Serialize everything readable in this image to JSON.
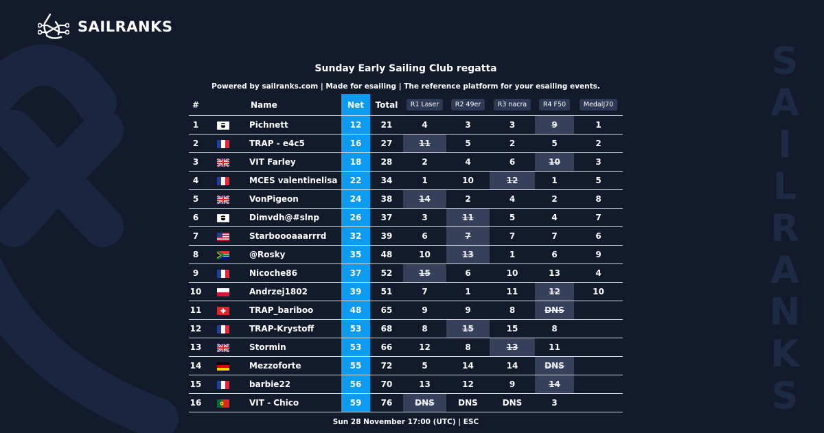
{
  "brand": {
    "name": "SAILRANKS",
    "side_letters": [
      "S",
      "A",
      "I",
      "L",
      "R",
      "A",
      "N",
      "K",
      "S"
    ]
  },
  "event": {
    "title": "Sunday Early Sailing Club regatta",
    "subtitle": "Powered by sailranks.com | Made for esailing | The reference platform for your esailing events.",
    "footer": "Sun 28 November 17:00 (UTC) | ESC"
  },
  "table": {
    "headers": {
      "rank": "#",
      "name": "Name",
      "net": "Net",
      "total": "Total"
    },
    "races": [
      "R1 Laser",
      "R2 49er",
      "R3 nacra",
      "R4 F50",
      "MedalJ70"
    ],
    "rows": [
      {
        "rank": "1",
        "flag": "corsica",
        "name": "Pichnett",
        "net": "12",
        "total": "21",
        "scores": [
          "4",
          "3",
          "3",
          "9",
          "1"
        ],
        "drops": [
          3
        ]
      },
      {
        "rank": "2",
        "flag": "fr",
        "name": "TRAP - e4c5",
        "net": "16",
        "total": "27",
        "scores": [
          "11",
          "5",
          "2",
          "5",
          "2"
        ],
        "drops": [
          0
        ]
      },
      {
        "rank": "3",
        "flag": "gb",
        "name": "VIT Farley",
        "net": "18",
        "total": "28",
        "scores": [
          "2",
          "4",
          "6",
          "10",
          "3"
        ],
        "drops": [
          3
        ]
      },
      {
        "rank": "4",
        "flag": "fr",
        "name": "MCES valentinelisa",
        "net": "22",
        "total": "34",
        "scores": [
          "1",
          "10",
          "12",
          "1",
          "5"
        ],
        "drops": [
          2
        ]
      },
      {
        "rank": "5",
        "flag": "gb",
        "name": "VonPigeon",
        "net": "24",
        "total": "38",
        "scores": [
          "14",
          "2",
          "4",
          "2",
          "8"
        ],
        "drops": [
          0
        ]
      },
      {
        "rank": "6",
        "flag": "corsica",
        "name": "Dimvdh@#slnp",
        "net": "26",
        "total": "37",
        "scores": [
          "3",
          "11",
          "5",
          "4",
          "7"
        ],
        "drops": [
          1
        ]
      },
      {
        "rank": "7",
        "flag": "us",
        "name": "Starboooaaarrrd",
        "net": "32",
        "total": "39",
        "scores": [
          "6",
          "7",
          "7",
          "7",
          "6"
        ],
        "drops": [
          1
        ]
      },
      {
        "rank": "8",
        "flag": "za",
        "name": "@Rosky",
        "net": "35",
        "total": "48",
        "scores": [
          "10",
          "13",
          "1",
          "6",
          "9"
        ],
        "drops": [
          1
        ]
      },
      {
        "rank": "9",
        "flag": "fr",
        "name": "Nicoche86",
        "net": "37",
        "total": "52",
        "scores": [
          "15",
          "6",
          "10",
          "13",
          "4"
        ],
        "drops": [
          0
        ]
      },
      {
        "rank": "10",
        "flag": "pl",
        "name": "Andrzej1802",
        "net": "39",
        "total": "51",
        "scores": [
          "7",
          "1",
          "11",
          "12",
          "10"
        ],
        "drops": [
          3
        ]
      },
      {
        "rank": "11",
        "flag": "ch",
        "name": "TRAP_bariboo",
        "net": "48",
        "total": "65",
        "scores": [
          "9",
          "9",
          "8",
          "DNS",
          ""
        ],
        "drops": [
          3
        ]
      },
      {
        "rank": "12",
        "flag": "fr",
        "name": "TRAP-Krystoff",
        "net": "53",
        "total": "68",
        "scores": [
          "8",
          "15",
          "15",
          "8",
          ""
        ],
        "drops": [
          1
        ]
      },
      {
        "rank": "13",
        "flag": "gb",
        "name": "Stormin",
        "net": "53",
        "total": "66",
        "scores": [
          "12",
          "8",
          "13",
          "11",
          ""
        ],
        "drops": [
          2
        ]
      },
      {
        "rank": "14",
        "flag": "de",
        "name": "Mezzoforte",
        "net": "55",
        "total": "72",
        "scores": [
          "5",
          "14",
          "14",
          "DNS",
          ""
        ],
        "drops": [
          3
        ]
      },
      {
        "rank": "15",
        "flag": "fr",
        "name": "barbie22",
        "net": "56",
        "total": "70",
        "scores": [
          "13",
          "12",
          "9",
          "14",
          ""
        ],
        "drops": [
          3
        ]
      },
      {
        "rank": "16",
        "flag": "pt",
        "name": "VIT - Chico",
        "net": "59",
        "total": "76",
        "scores": [
          "DNS",
          "DNS",
          "DNS",
          "3",
          ""
        ],
        "drops": [
          0
        ]
      }
    ]
  },
  "colors": {
    "background": "#131a2c",
    "net_column": "#0d9bf0",
    "dropped_cell": "#37405a",
    "race_badge": "#2e3a55",
    "decor": "#1e2a44"
  }
}
